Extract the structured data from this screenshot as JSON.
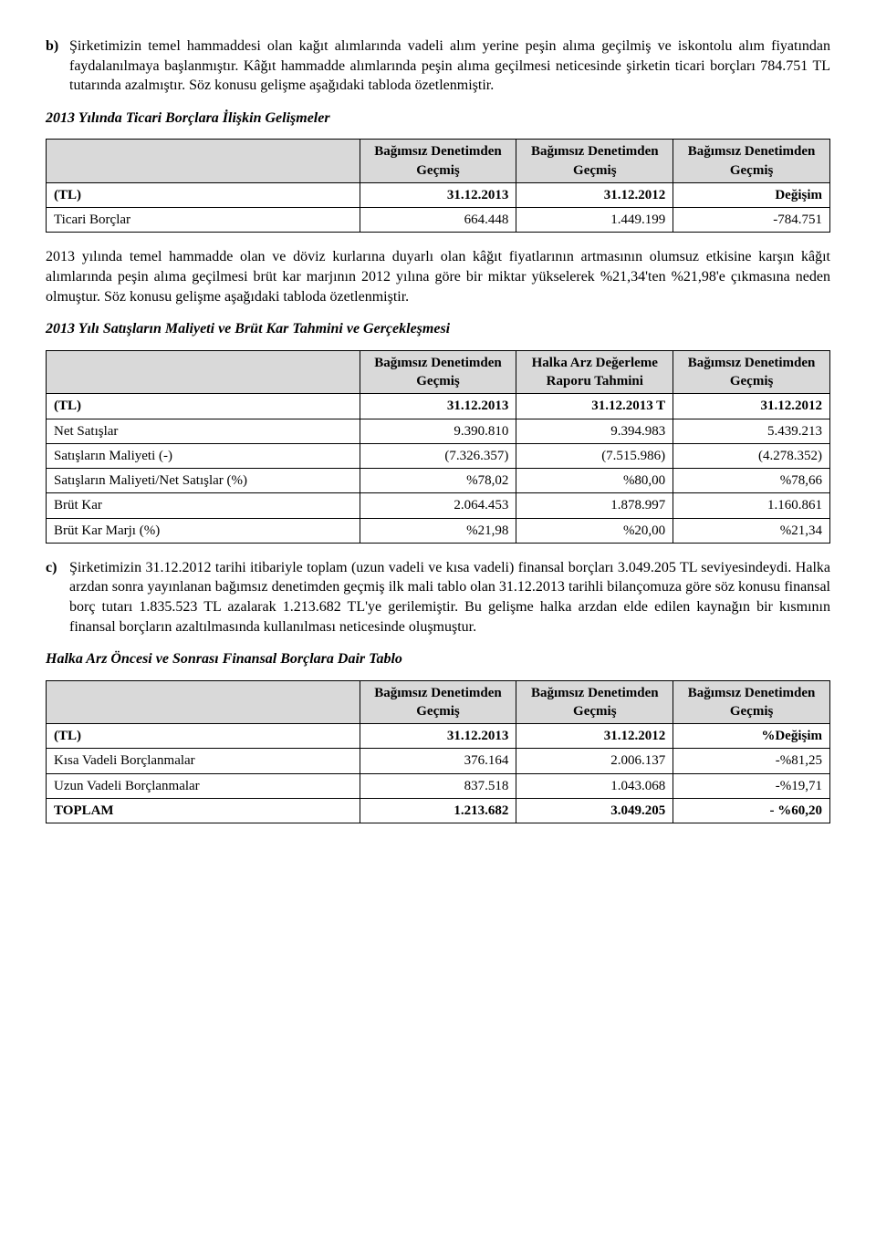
{
  "intro_b": {
    "marker": "b)",
    "p1": "Şirketimizin temel hammaddesi olan kağıt alımlarında vadeli alım yerine peşin alıma geçilmiş ve iskontolu alım fiyatından faydalanılmaya başlanmıştır. Kâğıt hammadde alımlarında peşin alıma geçilmesi neticesinde şirketin ticari borçları 784.751 TL tutarında azalmıştır. Söz konusu gelişme aşağıdaki tabloda özetlenmiştir."
  },
  "t1": {
    "title": "2013 Yılında Ticari Borçlara İlişkin Gelişmeler",
    "hdr": [
      "Bağımsız Denetimden Geçmiş",
      "Bağımsız Denetimden Geçmiş",
      "Bağımsız Denetimden Geçmiş"
    ],
    "tl_label": "(TL)",
    "cols": [
      "31.12.2013",
      "31.12.2012",
      "Değişim"
    ],
    "row1_label": "Ticari Borçlar",
    "row1": [
      "664.448",
      "1.449.199",
      "-784.751"
    ]
  },
  "mid": {
    "p1": "2013 yılında temel hammadde olan ve döviz kurlarına duyarlı olan kâğıt fiyatlarının artmasının olumsuz etkisine karşın kâğıt alımlarında peşin alıma geçilmesi brüt kar marjının 2012 yılına göre bir miktar yükselerek %21,34'ten %21,98'e çıkmasına neden olmuştur. Söz konusu gelişme aşağıdaki tabloda özetlenmiştir."
  },
  "t2": {
    "title": "2013 Yılı Satışların Maliyeti ve Brüt Kar Tahmini ve Gerçekleşmesi",
    "hdr": [
      "Bağımsız Denetimden Geçmiş",
      "Halka Arz Değerleme Raporu Tahmini",
      "Bağımsız Denetimden Geçmiş"
    ],
    "tl_label": "(TL)",
    "cols": [
      "31.12.2013",
      "31.12.2013 T",
      "31.12.2012"
    ],
    "rows": [
      {
        "label": "Net Satışlar",
        "v": [
          "9.390.810",
          "9.394.983",
          "5.439.213"
        ]
      },
      {
        "label": "Satışların Maliyeti (-)",
        "v": [
          "(7.326.357)",
          "(7.515.986)",
          "(4.278.352)"
        ]
      },
      {
        "label": "Satışların Maliyeti/Net Satışlar (%)",
        "v": [
          "%78,02",
          "%80,00",
          "%78,66"
        ]
      },
      {
        "label": "Brüt Kar",
        "v": [
          "2.064.453",
          "1.878.997",
          "1.160.861"
        ]
      },
      {
        "label": "Brüt Kar Marjı (%)",
        "v": [
          "%21,98",
          "%20,00",
          "%21,34"
        ]
      }
    ]
  },
  "intro_c": {
    "marker": "c)",
    "p1": "Şirketimizin 31.12.2012 tarihi itibariyle toplam (uzun vadeli ve kısa vadeli) finansal borçları 3.049.205 TL seviyesindeydi. Halka arzdan sonra yayınlanan bağımsız denetimden geçmiş ilk mali tablo olan 31.12.2013 tarihli bilançomuza göre söz konusu finansal borç tutarı 1.835.523 TL azalarak 1.213.682 TL'ye gerilemiştir. Bu gelişme halka arzdan elde edilen kaynağın bir kısmının finansal borçların azaltılmasında kullanılması neticesinde oluşmuştur."
  },
  "t3": {
    "title": "Halka Arz Öncesi ve Sonrası Finansal Borçlara Dair Tablo",
    "hdr": [
      "Bağımsız Denetimden Geçmiş",
      "Bağımsız Denetimden Geçmiş",
      "Bağımsız Denetimden Geçmiş"
    ],
    "tl_label": "(TL)",
    "cols": [
      "31.12.2013",
      "31.12.2012",
      "%Değişim"
    ],
    "rows": [
      {
        "label": "Kısa Vadeli Borçlanmalar",
        "v": [
          "376.164",
          "2.006.137",
          "-%81,25"
        ]
      },
      {
        "label": "Uzun Vadeli Borçlanmalar",
        "v": [
          "837.518",
          "1.043.068",
          "-%19,71"
        ]
      }
    ],
    "total_label": "TOPLAM",
    "total": [
      "1.213.682",
      "3.049.205",
      "- %60,20"
    ]
  }
}
